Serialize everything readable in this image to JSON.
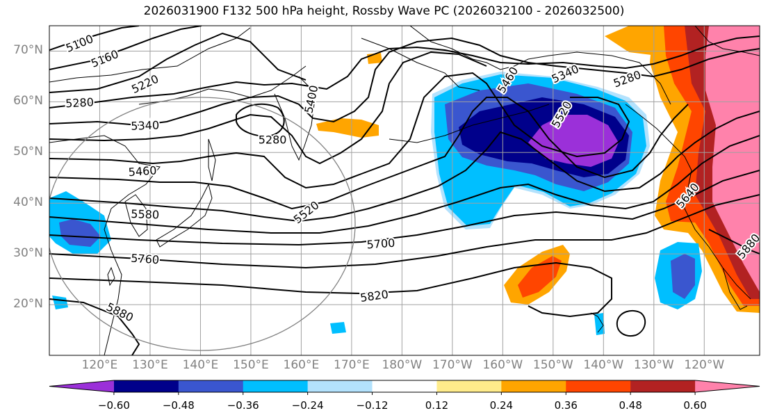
{
  "title": "2026031900 F132 500 hPa height, Rossby Wave PC (2026032100 - 2026032500)",
  "map": {
    "projection": "equirectangular",
    "lon_range": [
      110,
      251
    ],
    "lat_range": [
      10,
      75
    ],
    "grid": true,
    "lat_ticks": [
      "70°N",
      "60°N",
      "50°N",
      "40°N",
      "30°N",
      "20°N"
    ],
    "lon_ticks": [
      "120°E",
      "130°E",
      "140°E",
      "150°E",
      "160°E",
      "170°E",
      "180°W",
      "170°W",
      "160°W",
      "150°W",
      "140°W",
      "130°W",
      "120°W"
    ]
  },
  "contour_labels": [
    {
      "text": "5100",
      "lon": 116,
      "lat": 71.5,
      "angle": -22
    },
    {
      "text": "5160",
      "lon": 121,
      "lat": 68.5,
      "angle": -22
    },
    {
      "text": "5220",
      "lon": 129,
      "lat": 63.5,
      "angle": -25
    },
    {
      "text": "5280",
      "lon": 116,
      "lat": 59.8,
      "angle": -3
    },
    {
      "text": "5340",
      "lon": 129,
      "lat": 55.3,
      "angle": -2
    },
    {
      "text": "5460",
      "lon": 128.5,
      "lat": 46.3,
      "angle": -4
    },
    {
      "text": "5580",
      "lon": 129,
      "lat": 37.8,
      "angle": 2
    },
    {
      "text": "5760",
      "lon": 129,
      "lat": 29,
      "angle": 4
    },
    {
      "text": "5880",
      "lon": 124,
      "lat": 18.5,
      "angle": 26
    },
    {
      "text": "5280",
      "lon": 154.3,
      "lat": 52.5,
      "angle": 0
    },
    {
      "text": "5400",
      "lon": 162,
      "lat": 60.5,
      "angle": -78
    },
    {
      "text": "5520",
      "lon": 161,
      "lat": 38.2,
      "angle": -38
    },
    {
      "text": "5700",
      "lon": 175.8,
      "lat": 32,
      "angle": -4
    },
    {
      "text": "5820",
      "lon": 174.5,
      "lat": 21.7,
      "angle": -8
    },
    {
      "text": "5340",
      "lon": 212.4,
      "lat": 65.5,
      "angle": -24
    },
    {
      "text": "5280",
      "lon": 224.7,
      "lat": 64.5,
      "angle": -20
    },
    {
      "text": "5460",
      "lon": 201,
      "lat": 64.3,
      "angle": -58
    },
    {
      "text": "5520",
      "lon": 211.7,
      "lat": 57.5,
      "angle": -60
    },
    {
      "text": "5640",
      "lon": 236.7,
      "lat": 41.5,
      "angle": -50
    },
    {
      "text": "5880",
      "lon": 248.8,
      "lat": 31.5,
      "angle": -50
    }
  ],
  "shading_levels": [
    {
      "range": "< -0.60",
      "color": "#9b30d9"
    },
    {
      "range": "-0.60 to -0.48",
      "color": "#00008b"
    },
    {
      "range": "-0.48 to -0.36",
      "color": "#3a56cf"
    },
    {
      "range": "-0.36 to -0.24",
      "color": "#00bfff"
    },
    {
      "range": "-0.24 to -0.12",
      "color": "#b3e2fd"
    },
    {
      "range": "-0.12 to 0.12",
      "color": "#ffffff"
    },
    {
      "range": "0.12 to 0.24",
      "color": "#ffec8b"
    },
    {
      "range": "0.24 to 0.36",
      "color": "#ffa500"
    },
    {
      "range": "0.36 to 0.48",
      "color": "#ff4500"
    },
    {
      "range": "0.48 to 0.60",
      "color": "#b22222"
    },
    {
      "range": "> 0.60",
      "color": "#ff82ab"
    }
  ],
  "colorbar": {
    "ticks": [
      "−0.60",
      "−0.48",
      "−0.36",
      "−0.24",
      "−0.12",
      "0.12",
      "0.24",
      "0.36",
      "0.48",
      "0.60"
    ],
    "extend": "both"
  }
}
